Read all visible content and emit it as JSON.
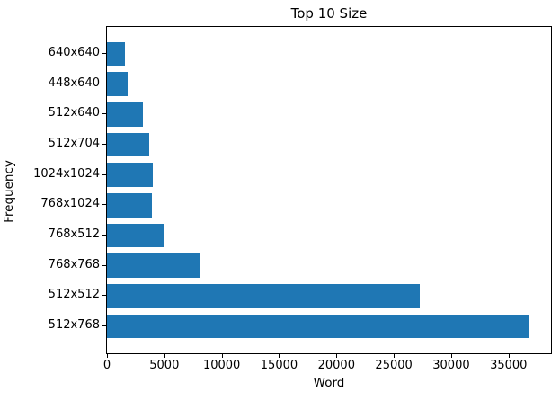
{
  "chart_data": {
    "type": "bar",
    "orientation": "horizontal",
    "title": "Top 10 Size",
    "xlabel": "Word",
    "ylabel": "Frequency",
    "categories": [
      "640x640",
      "448x640",
      "512x640",
      "512x704",
      "1024x1024",
      "768x1024",
      "768x512",
      "768x768",
      "512x512",
      "512x768"
    ],
    "values": [
      1560,
      1780,
      3120,
      3720,
      3960,
      3900,
      5000,
      8100,
      27300,
      36850
    ],
    "xticks": [
      0,
      5000,
      10000,
      15000,
      20000,
      25000,
      30000,
      35000
    ],
    "xlim": [
      0,
      38700
    ],
    "bar_color": "#1f77b4",
    "grid": false,
    "legend": null,
    "sort_order": "ascending-top-to-bottom"
  }
}
